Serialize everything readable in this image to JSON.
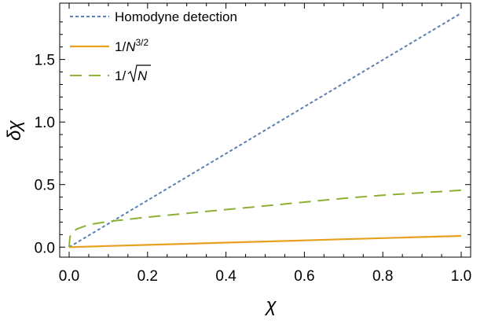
{
  "chart_data": {
    "type": "line",
    "xlabel": "χ",
    "ylabel": "δχ",
    "xlim": [
      0.0,
      1.0
    ],
    "ylim": [
      -0.08,
      1.95
    ],
    "x_ticks": [
      "0.0",
      "0.2",
      "0.4",
      "0.6",
      "0.8",
      "1.0"
    ],
    "y_ticks": [
      "0.0",
      "0.5",
      "1.0",
      "1.5"
    ],
    "legend_position": "top-left",
    "grid": false,
    "series": [
      {
        "name": "Homodyne detection",
        "style": "dotted",
        "color": "#5b7fb2",
        "x": [
          0.0,
          0.1,
          0.2,
          0.3,
          0.4,
          0.5,
          0.6,
          0.7,
          0.8,
          0.9,
          1.0
        ],
        "y": [
          0.0,
          0.187,
          0.374,
          0.561,
          0.748,
          0.935,
          1.122,
          1.309,
          1.496,
          1.683,
          1.87
        ]
      },
      {
        "name_parts": [
          "1/",
          "N",
          "3/2"
        ],
        "style": "solid",
        "color": "#e8a020",
        "x": [
          0.0,
          0.1,
          0.2,
          0.3,
          0.4,
          0.5,
          0.6,
          0.7,
          0.8,
          0.9,
          1.0
        ],
        "y": [
          0.0,
          0.009,
          0.018,
          0.027,
          0.036,
          0.045,
          0.054,
          0.063,
          0.072,
          0.081,
          0.09
        ]
      },
      {
        "name_parts": [
          "1/",
          "N"
        ],
        "style": "dashed",
        "color": "#8db033",
        "x": [
          0.0,
          0.002,
          0.005,
          0.01,
          0.02,
          0.05,
          0.1,
          0.2,
          0.3,
          0.4,
          0.5,
          0.6,
          0.7,
          0.8,
          0.9,
          1.0
        ],
        "y": [
          0.0,
          0.08,
          0.105,
          0.125,
          0.145,
          0.18,
          0.205,
          0.24,
          0.27,
          0.3,
          0.33,
          0.36,
          0.39,
          0.415,
          0.435,
          0.455
        ]
      }
    ]
  }
}
